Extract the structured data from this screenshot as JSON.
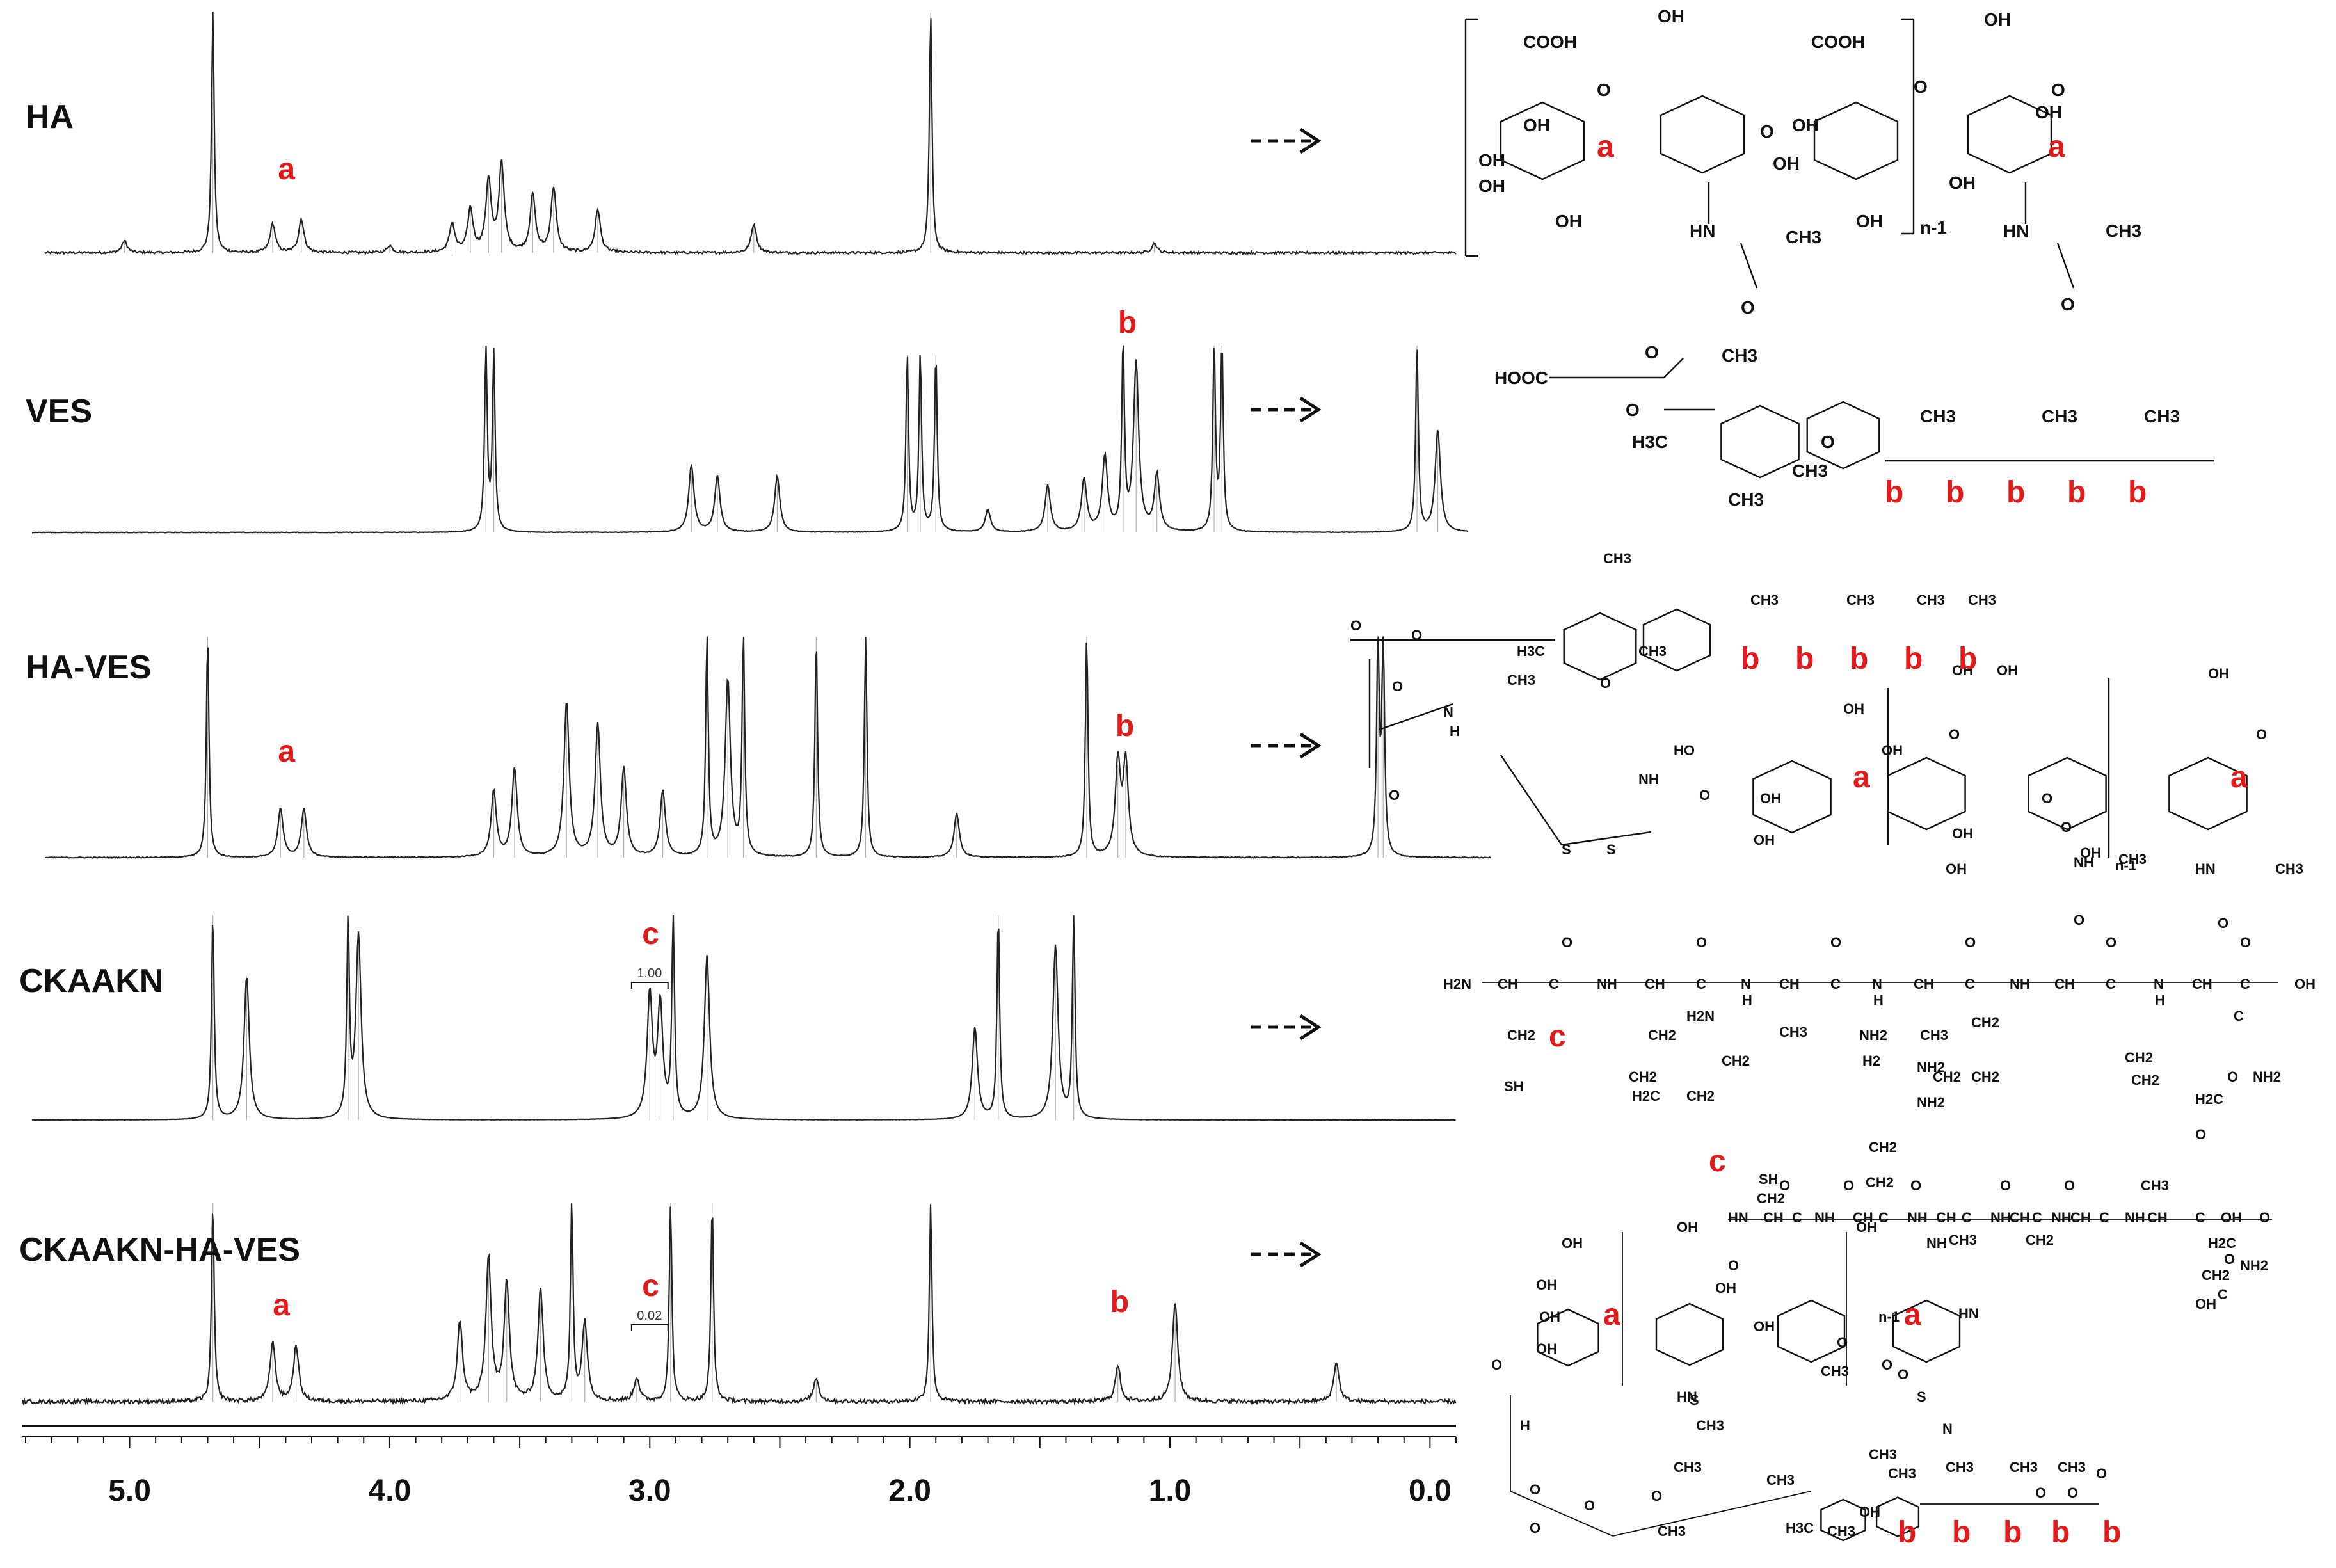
{
  "chart_data": {
    "type": "line",
    "title": "",
    "xlabel": "",
    "ylabel": "",
    "xlim": [
      5.4,
      -0.1
    ],
    "x_reversed": true,
    "ticks": [
      5.0,
      4.0,
      3.0,
      2.0,
      1.0,
      0.0
    ],
    "tick_labels": [
      "5.0",
      "4.0",
      "3.0",
      "2.0",
      "1.0",
      "0.0"
    ],
    "grid": false,
    "series": [
      {
        "name": "HA",
        "peaks": [
          [
            5.02,
            0.05
          ],
          [
            4.68,
            1.0
          ],
          [
            4.45,
            0.12
          ],
          [
            4.34,
            0.14
          ],
          [
            4.0,
            0.03
          ],
          [
            3.76,
            0.12
          ],
          [
            3.69,
            0.18
          ],
          [
            3.62,
            0.3
          ],
          [
            3.57,
            0.37
          ],
          [
            3.45,
            0.24
          ],
          [
            3.37,
            0.27
          ],
          [
            3.2,
            0.18
          ],
          [
            2.6,
            0.12
          ],
          [
            1.92,
            1.0
          ],
          [
            1.06,
            0.04
          ]
        ],
        "annotations": [
          {
            "letter": "a",
            "ppm": 4.4
          }
        ]
      },
      {
        "name": "VES",
        "peaks": [
          [
            3.63,
            1.0
          ],
          [
            3.6,
            0.95
          ],
          [
            2.84,
            0.36
          ],
          [
            2.74,
            0.3
          ],
          [
            2.51,
            0.3
          ],
          [
            2.01,
            0.95
          ],
          [
            1.96,
            0.95
          ],
          [
            1.9,
            0.95
          ],
          [
            1.7,
            0.12
          ],
          [
            1.47,
            0.25
          ],
          [
            1.33,
            0.28
          ],
          [
            1.25,
            0.4
          ],
          [
            1.18,
            1.0
          ],
          [
            1.13,
            0.9
          ],
          [
            1.05,
            0.3
          ],
          [
            0.83,
            1.0
          ],
          [
            0.8,
            1.0
          ],
          [
            0.05,
            1.0
          ],
          [
            -0.03,
            0.55
          ]
        ],
        "annotations": [
          {
            "letter": "b",
            "ppm": 1.17
          }
        ]
      },
      {
        "name": "HA-VES",
        "peaks": [
          [
            4.7,
            1.0
          ],
          [
            4.42,
            0.22
          ],
          [
            4.33,
            0.22
          ],
          [
            3.6,
            0.3
          ],
          [
            3.52,
            0.4
          ],
          [
            3.32,
            0.7
          ],
          [
            3.2,
            0.6
          ],
          [
            3.1,
            0.4
          ],
          [
            2.95,
            0.3
          ],
          [
            2.78,
            1.0
          ],
          [
            2.7,
            0.8
          ],
          [
            2.64,
            1.0
          ],
          [
            2.36,
            1.0
          ],
          [
            2.17,
            1.0
          ],
          [
            1.82,
            0.2
          ],
          [
            1.32,
            1.0
          ],
          [
            1.2,
            0.42
          ],
          [
            1.17,
            0.42
          ],
          [
            0.2,
            1.0
          ],
          [
            0.18,
            1.0
          ]
        ],
        "annotations": [
          {
            "letter": "a",
            "ppm": 4.4
          },
          {
            "letter": "b",
            "ppm": 1.18
          }
        ]
      },
      {
        "name": "CKAAKN",
        "peaks": [
          [
            4.68,
            1.0
          ],
          [
            4.55,
            0.7
          ],
          [
            4.16,
            0.95
          ],
          [
            4.12,
            0.9
          ],
          [
            3.0,
            0.6
          ],
          [
            2.96,
            0.55
          ],
          [
            2.91,
            1.0
          ],
          [
            2.78,
            0.8
          ],
          [
            1.75,
            0.45
          ],
          [
            1.66,
            1.0
          ],
          [
            1.44,
            0.85
          ],
          [
            1.37,
            1.0
          ]
        ],
        "annotations": [
          {
            "letter": "c",
            "ppm": 3.0
          }
        ],
        "integration": [
          {
            "range": [
              3.07,
              2.93
            ],
            "value": "1.00"
          }
        ]
      },
      {
        "name": "CKAAKN-HA-VES",
        "peaks": [
          [
            4.68,
            1.0
          ],
          [
            4.45,
            0.3
          ],
          [
            4.36,
            0.28
          ],
          [
            3.73,
            0.4
          ],
          [
            3.62,
            0.72
          ],
          [
            3.55,
            0.6
          ],
          [
            3.42,
            0.56
          ],
          [
            3.3,
            1.0
          ],
          [
            3.25,
            0.4
          ],
          [
            3.05,
            0.12
          ],
          [
            2.92,
            1.0
          ],
          [
            2.76,
            1.0
          ],
          [
            2.36,
            0.12
          ],
          [
            1.92,
            1.0
          ],
          [
            1.2,
            0.18
          ],
          [
            0.98,
            0.5
          ],
          [
            0.36,
            0.2
          ]
        ],
        "annotations": [
          {
            "letter": "a",
            "ppm": 4.42
          },
          {
            "letter": "b",
            "ppm": 1.2
          },
          {
            "letter": "c",
            "ppm": 3.0
          }
        ],
        "integration": [
          {
            "range": [
              3.07,
              2.93
            ],
            "value": "0.02"
          }
        ]
      }
    ]
  },
  "labels": {
    "samples": [
      "HA",
      "VES",
      "HA-VES",
      "CKAAKN",
      "CKAAKN-HA-VES"
    ],
    "integration_values": [
      "1.00",
      "0.02"
    ]
  },
  "structures": {
    "HA": {
      "groups": [
        "COOH",
        "OH",
        "OH",
        "OH",
        "OH",
        "OH",
        "COOH",
        "OH",
        "OH",
        "OH",
        "OH",
        "OH",
        "OH",
        "HN",
        "CH3",
        "O",
        "HN",
        "CH3",
        "O",
        "n-1",
        "O",
        "O",
        "O",
        "O"
      ],
      "letters": [
        "a",
        "a"
      ]
    },
    "VES": {
      "groups": [
        "HOOC",
        "O",
        "O",
        "CH3",
        "H3C",
        "CH3",
        "O",
        "CH3",
        "CH3",
        "CH3",
        "CH3"
      ],
      "letters": [
        "b",
        "b",
        "b",
        "b",
        "b"
      ]
    },
    "HA-VES": {
      "groups": [
        "CH3",
        "O",
        "O",
        "H3C",
        "CH3",
        "O",
        "CH3",
        "CH3",
        "CH3",
        "CH3",
        "CH3",
        "O",
        "N",
        "H",
        "O",
        "S",
        "S",
        "NH",
        "O",
        "HO",
        "OH",
        "OH",
        "OH",
        "OH",
        "O",
        "OH",
        "OH",
        "O",
        "O",
        "OH",
        "OH",
        "NH",
        "CH3",
        "O",
        "OH",
        "n-1",
        "HN",
        "CH3",
        "O",
        "OH",
        "O"
      ],
      "letters": [
        "b",
        "b",
        "b",
        "b",
        "b",
        "a",
        "a"
      ]
    },
    "CKAAKN": {
      "groups": [
        "H2N",
        "CH",
        "C",
        "NH",
        "CH",
        "C",
        "N",
        "H",
        "CH",
        "C",
        "N",
        "H",
        "CH",
        "C",
        "NH",
        "CH",
        "C",
        "N",
        "H",
        "CH",
        "C",
        "OH",
        "O",
        "O",
        "O",
        "O",
        "O",
        "O",
        "CH2",
        "SH",
        "CH3",
        "CH3",
        "CH2",
        "CH2",
        "H2N",
        "CH2",
        "H2C",
        "CH2",
        "NH2",
        "H2",
        "NH2",
        "CH2",
        "CH2",
        "CH2",
        "NH2",
        "CH2",
        "CH2",
        "H2C",
        "C",
        "O",
        "NH2",
        "O"
      ],
      "letters": [
        "c"
      ]
    },
    "CKAAKN-HA-VES": {
      "groups": [
        "SH",
        "CH2",
        "HN",
        "CH",
        "C",
        "NH",
        "CH",
        "C",
        "NH",
        "CH",
        "C",
        "NH",
        "CH",
        "C",
        "NH",
        "CH",
        "C",
        "NH",
        "CH",
        "C",
        "OH",
        "O",
        "O",
        "O",
        "O",
        "O",
        "O",
        "CH3",
        "CH3",
        "CH2",
        "CH2",
        "CH2",
        "H2C",
        "CH2",
        "C",
        "O",
        "NH2",
        "OH",
        "OH",
        "OH",
        "OH",
        "OH",
        "OH",
        "OH",
        "OH",
        "OH",
        "NH",
        "O",
        "O",
        "O",
        "O",
        "n-1",
        "HN",
        "CH3",
        "O",
        "HN",
        "CH3",
        "S",
        "S",
        "N",
        "H",
        "O",
        "O",
        "O",
        "O",
        "CH3",
        "CH3",
        "CH3",
        "CH3",
        "CH3",
        "CH3",
        "CH3",
        "CH3",
        "O",
        "O",
        "O",
        "H3C",
        "CH3",
        "OH"
      ],
      "letters": [
        "c",
        "a",
        "a",
        "b",
        "b",
        "b",
        "b",
        "b"
      ]
    }
  },
  "colors": {
    "spectrum": "#222222",
    "annotation": "#e21a1a",
    "text": "#111111"
  }
}
